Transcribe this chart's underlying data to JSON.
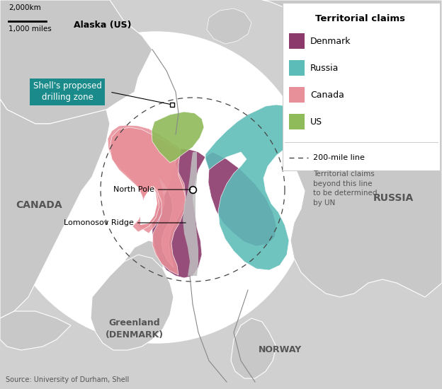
{
  "title": "Territorial claims",
  "colors": {
    "denmark": "#8b3a6b",
    "russia": "#5bbcb8",
    "canada": "#e8909a",
    "us": "#8fbb5a",
    "lomonosov": "#c0c0c0",
    "land": "#c8c8c8",
    "ocean": "#ffffff",
    "background": "#d0d0d0"
  },
  "labels": {
    "alaska": "Alaska (US)",
    "canada": "CANADA",
    "russia": "RUSSIA",
    "greenland": "Greenland\n(DENMARK)",
    "norway": "NORWAY",
    "north_pole": "North Pole",
    "lomonosov": "Lomonosov Ridge",
    "drilling": "Shell's proposed\ndrilling zone",
    "source": "Source: University of Durham, Shell",
    "200mile": "200-mile line",
    "200mile_desc": "Territorial claims\nbeyond this line\nto be determined\nby UN",
    "scale_km": "2,000km",
    "scale_miles": "1,000 miles"
  },
  "drilling_color": "#1a8a8a",
  "legend_items": [
    [
      "denmark",
      "Denmark"
    ],
    [
      "russia",
      "Russia"
    ],
    [
      "canada",
      "Canada"
    ],
    [
      "us",
      "US"
    ]
  ]
}
